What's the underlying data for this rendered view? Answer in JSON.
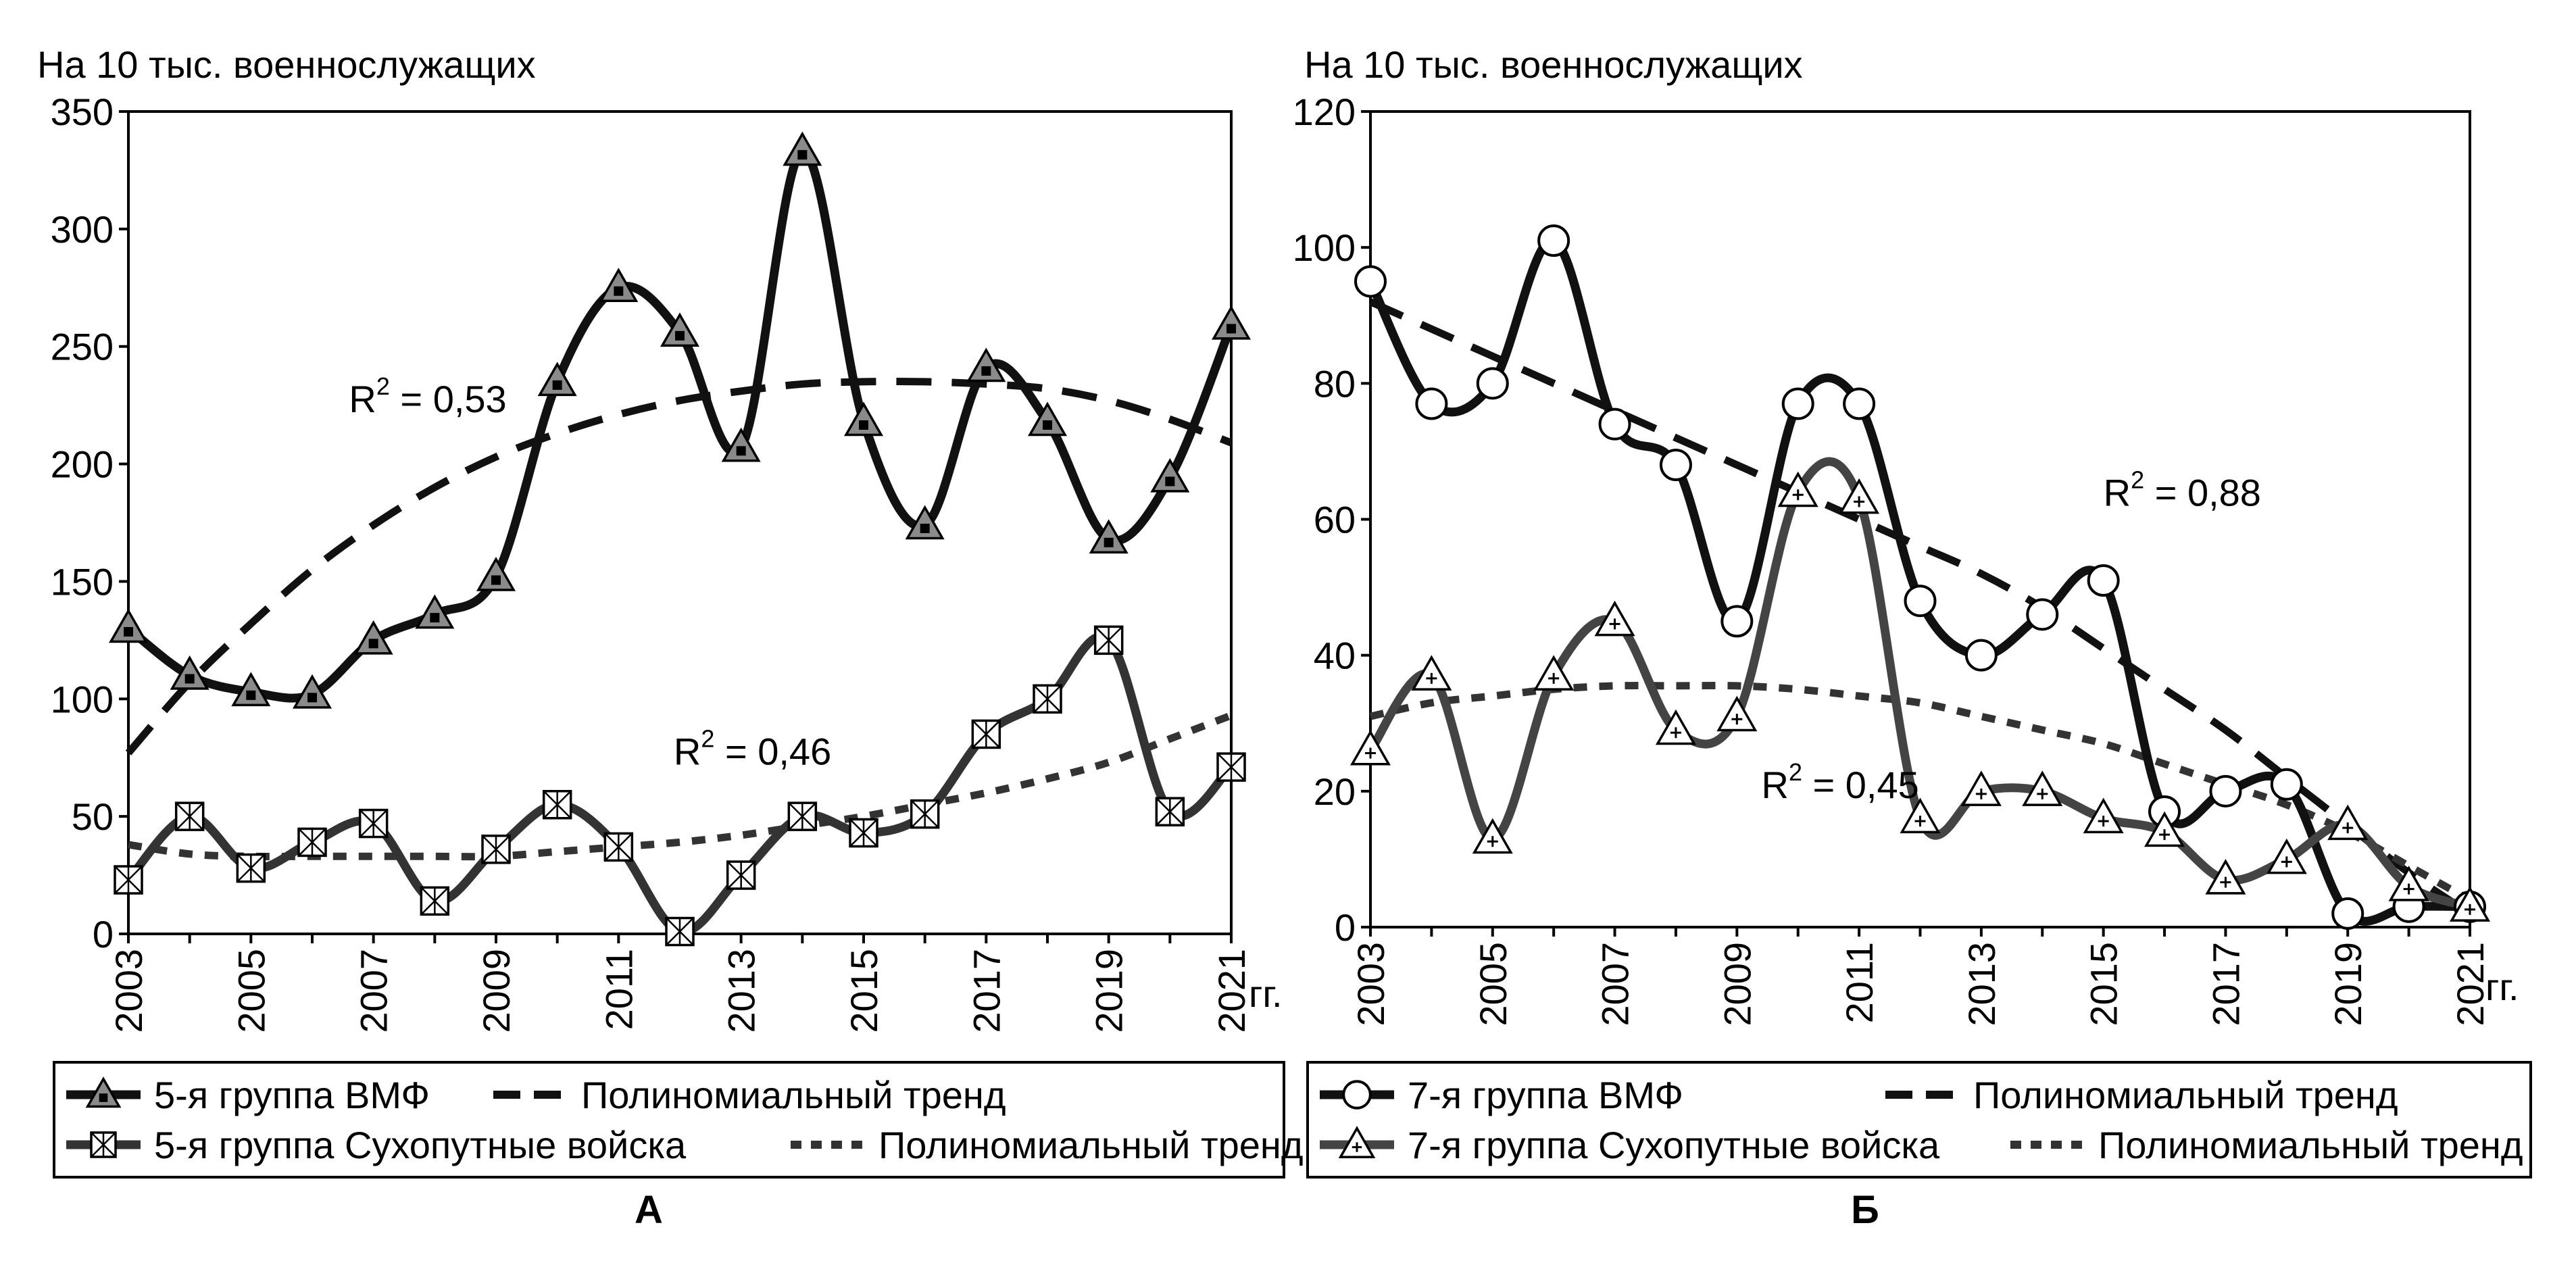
{
  "chart_data": [
    {
      "type": "line",
      "panel_label": "А",
      "ylabel": "На 10 тыс.  военнослужащих",
      "xunit": "гг.",
      "ylim": [
        0,
        350
      ],
      "yticks": [
        0,
        50,
        100,
        150,
        200,
        250,
        300,
        350
      ],
      "xlim": [
        2003,
        2021
      ],
      "xticks": [
        2003,
        2005,
        2007,
        2009,
        2011,
        2013,
        2015,
        2017,
        2019,
        2021
      ],
      "x": [
        2003,
        2004,
        2005,
        2006,
        2007,
        2008,
        2009,
        2010,
        2011,
        2012,
        2013,
        2014,
        2015,
        2016,
        2017,
        2018,
        2019,
        2020,
        2021
      ],
      "series": [
        {
          "name": "5-я группа ВМФ",
          "marker": "triangle-filled",
          "values": [
            130,
            110,
            103,
            102,
            125,
            136,
            152,
            235,
            275,
            256,
            207,
            333,
            218,
            174,
            241,
            218,
            168,
            194,
            259
          ]
        },
        {
          "name": "5-я группа Сухопутные войска",
          "marker": "box-x",
          "values": [
            23,
            50,
            28,
            39,
            47,
            14,
            36,
            55,
            37,
            1,
            25,
            50,
            43,
            51,
            85,
            100,
            125,
            52,
            71
          ]
        }
      ],
      "trends": [
        {
          "name": "Полиномиальный тренд",
          "for": "5-я группа ВМФ",
          "style": "long-dash",
          "values": [
            77,
            107,
            132,
            155,
            174,
            190,
            203,
            213,
            221,
            227,
            231,
            234,
            235,
            235,
            234,
            232,
            227,
            219,
            209
          ]
        },
        {
          "name": "Полиномиальный тренд",
          "for": "5-я группа Сухопутные войска",
          "style": "short-dash",
          "values": [
            38,
            34,
            33,
            33,
            33,
            33,
            33,
            35,
            37,
            39,
            42,
            46,
            50,
            55,
            60,
            66,
            73,
            83,
            93
          ]
        }
      ],
      "annotations": [
        {
          "text": "R",
          "sup": "2",
          "rest": " = 0,53",
          "x": 2006.6,
          "y": 222
        },
        {
          "text": "R",
          "sup": "2",
          "rest": " = 0,46",
          "x": 2011.9,
          "y": 72
        }
      ],
      "legend": [
        {
          "label": "5-я группа ВМФ",
          "kind": "series",
          "index": 0
        },
        {
          "label": "Полиномиальный тренд",
          "kind": "trend",
          "index": 0
        },
        {
          "label": "5-я группа Сухопутные войска",
          "kind": "series",
          "index": 1
        },
        {
          "label": "Полиномиальный тренд",
          "kind": "trend",
          "index": 1
        }
      ]
    },
    {
      "type": "line",
      "panel_label": "Б",
      "ylabel": "На 10 тыс.  военнослужащих",
      "xunit": "гг.",
      "ylim": [
        0,
        120
      ],
      "yticks": [
        0,
        20,
        40,
        60,
        80,
        100,
        120
      ],
      "xlim": [
        2003,
        2021
      ],
      "xticks": [
        2003,
        2005,
        2007,
        2009,
        2011,
        2013,
        2015,
        2017,
        2019,
        2021
      ],
      "x": [
        2003,
        2004,
        2005,
        2006,
        2007,
        2008,
        2009,
        2010,
        2011,
        2012,
        2013,
        2014,
        2015,
        2016,
        2017,
        2018,
        2019,
        2020,
        2021
      ],
      "series": [
        {
          "name": "7-я группа ВМФ",
          "marker": "circle",
          "values": [
            95,
            77,
            80,
            101,
            74,
            68,
            45,
            77,
            77,
            48,
            40,
            46,
            51,
            17,
            20,
            21,
            2,
            3,
            3
          ]
        },
        {
          "name": "7-я группа Сухопутные войска",
          "marker": "triangle-plus",
          "values": [
            26,
            37,
            13,
            37,
            45,
            29,
            31,
            64,
            63,
            16,
            20,
            20,
            16,
            14,
            7,
            10,
            15,
            6,
            3
          ]
        }
      ],
      "trends": [
        {
          "name": "Полиномиальный тренд",
          "for": "7-я группа ВМФ",
          "style": "long-dash",
          "values": [
            92,
            88,
            84,
            80,
            76,
            72,
            68,
            64,
            60,
            56,
            52,
            47,
            41,
            35,
            29,
            22,
            15,
            8,
            2
          ]
        },
        {
          "name": "Полиномиальный тренд",
          "for": "7-я группа Сухопутные войска",
          "style": "short-dash",
          "values": [
            31,
            33,
            34,
            35,
            35.5,
            35.5,
            35.5,
            35,
            34,
            33,
            31,
            29,
            27,
            24,
            21,
            18,
            14,
            9,
            4
          ]
        }
      ],
      "annotations": [
        {
          "text": "R",
          "sup": "2",
          "rest": " = 0,88",
          "x": 2015.0,
          "y": 62
        },
        {
          "text": "R",
          "sup": "2",
          "rest": " = 0,45",
          "x": 2009.4,
          "y": 19
        }
      ],
      "legend": [
        {
          "label": "7-я группа ВМФ",
          "kind": "series",
          "index": 0
        },
        {
          "label": "Полиномиальный тренд",
          "kind": "trend",
          "index": 0
        },
        {
          "label": "7-я группа Сухопутные войска",
          "kind": "series",
          "index": 1
        },
        {
          "label": "Полиномиальный тренд",
          "kind": "trend",
          "index": 1
        }
      ]
    }
  ]
}
